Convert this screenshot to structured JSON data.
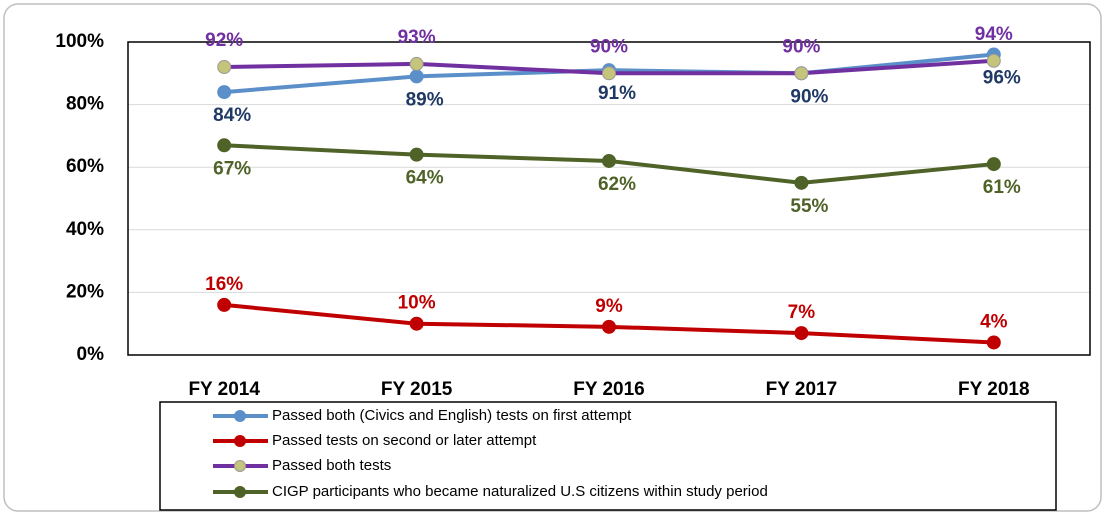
{
  "chart_data": {
    "type": "line",
    "categories": [
      "FY 2014",
      "FY 2015",
      "FY 2016",
      "FY 2017",
      "FY 2018"
    ],
    "series": [
      {
        "name": "Passed both (Civics and English) tests on first attempt",
        "color": "#5b8fc9",
        "label_color": "#1f3864",
        "values": [
          84,
          89,
          91,
          90,
          96
        ],
        "value_labels": [
          "84%",
          "89%",
          "91%",
          "90%",
          "96%"
        ]
      },
      {
        "name": "Passed tests on second or later attempt",
        "color": "#c00000",
        "label_color": "#c00000",
        "values": [
          16,
          10,
          9,
          7,
          4
        ],
        "value_labels": [
          "16%",
          "10%",
          "9%",
          "7%",
          "4%"
        ]
      },
      {
        "name": "Passed both tests",
        "color": "#7030a0",
        "marker_color": "#c4c47a",
        "label_color": "#7030a0",
        "values": [
          92,
          93,
          90,
          90,
          94
        ],
        "value_labels": [
          "92%",
          "93%",
          "90%",
          "90%",
          "94%"
        ]
      },
      {
        "name": "CIGP participants who became naturalized U.S citizens within study period",
        "color": "#4f6228",
        "label_color": "#4f6228",
        "values": [
          67,
          64,
          62,
          55,
          61
        ],
        "value_labels": [
          "67%",
          "64%",
          "62%",
          "55%",
          "61%"
        ]
      }
    ],
    "ylim": [
      0,
      100
    ],
    "yticks": [
      {
        "value": 0,
        "label": "0%"
      },
      {
        "value": 20,
        "label": "20%"
      },
      {
        "value": 40,
        "label": "40%"
      },
      {
        "value": 60,
        "label": "60%"
      },
      {
        "value": 80,
        "label": "80%"
      },
      {
        "value": 100,
        "label": "100%"
      }
    ],
    "grid": true
  }
}
